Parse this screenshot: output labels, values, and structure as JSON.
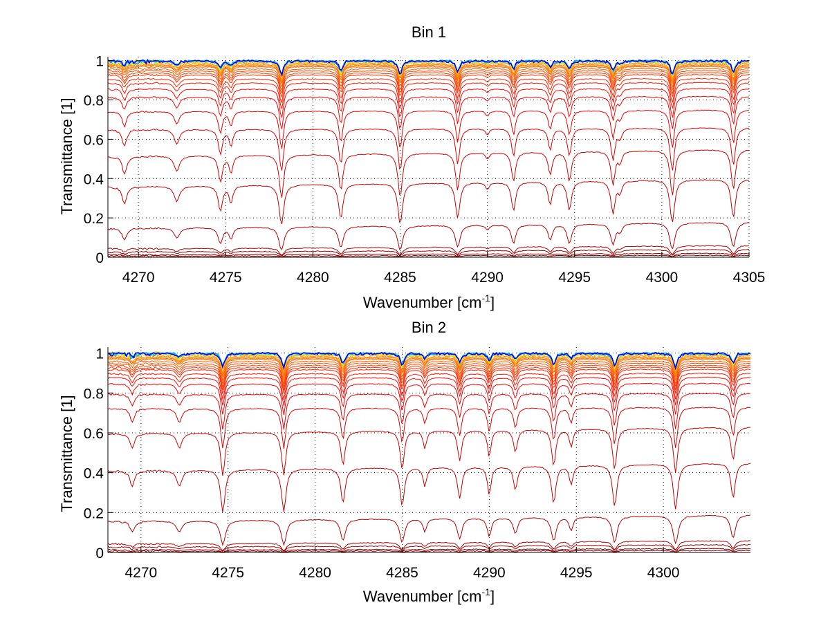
{
  "chart_data": [
    {
      "type": "line",
      "title": "Bin 1",
      "xlabel": "Wavenumber [cm",
      "xlabel_sup": "-1",
      "xlabel_end": "]",
      "ylabel": "Transmittance [1]",
      "xlim": [
        4268.25,
        4305
      ],
      "ylim": [
        0,
        1.02
      ],
      "xticks": [
        4270,
        4275,
        4280,
        4285,
        4290,
        4295,
        4300,
        4305
      ],
      "xtick_labels": [
        "4270",
        "4275",
        "4280",
        "4285",
        "4290",
        "4295",
        "4300",
        "4305"
      ],
      "yticks": [
        0,
        0.2,
        0.4,
        0.6,
        0.8,
        1
      ],
      "ytick_labels": [
        "0",
        "0.2",
        "0.4",
        "0.6",
        "0.8",
        "1"
      ],
      "grid": "dotted",
      "colormap": "jet",
      "absorption_lines": [
        {
          "center": 4269.2,
          "strength": 0.35,
          "width": 0.25
        },
        {
          "center": 4272.2,
          "strength": 0.3,
          "width": 0.3
        },
        {
          "center": 4274.7,
          "strength": 0.55,
          "width": 0.22
        },
        {
          "center": 4275.3,
          "strength": 0.35,
          "width": 0.2
        },
        {
          "center": 4278.2,
          "strength": 1.0,
          "width": 0.22
        },
        {
          "center": 4281.6,
          "strength": 0.8,
          "width": 0.22
        },
        {
          "center": 4285.0,
          "strength": 1.0,
          "width": 0.22
        },
        {
          "center": 4288.3,
          "strength": 0.8,
          "width": 0.22
        },
        {
          "center": 4290.0,
          "strength": 0.12,
          "width": 0.2
        },
        {
          "center": 4291.5,
          "strength": 0.6,
          "width": 0.22
        },
        {
          "center": 4293.6,
          "strength": 0.45,
          "width": 0.22
        },
        {
          "center": 4294.7,
          "strength": 0.6,
          "width": 0.22
        },
        {
          "center": 4297.2,
          "strength": 0.7,
          "width": 0.22
        },
        {
          "center": 4297.6,
          "strength": 0.2,
          "width": 0.2
        },
        {
          "center": 4300.6,
          "strength": 1.0,
          "width": 0.22
        },
        {
          "center": 4304.1,
          "strength": 0.85,
          "width": 0.22
        }
      ],
      "curve_baselines_at_left": [
        1.0,
        1.0,
        1.0,
        0.995,
        0.99,
        0.985,
        0.98,
        0.975,
        0.97,
        0.96,
        0.95,
        0.94,
        0.93,
        0.91,
        0.89,
        0.86,
        0.82,
        0.75,
        0.66,
        0.55,
        0.4,
        0.18,
        0.06,
        0.04,
        0.02,
        0.01
      ]
    },
    {
      "type": "line",
      "title": "Bin 2",
      "xlabel": "Wavenumber [cm",
      "xlabel_sup": "-1",
      "xlabel_end": "]",
      "ylabel": "Transmittance [1]",
      "xlim": [
        4268.1,
        4305
      ],
      "ylim": [
        0,
        1.03
      ],
      "xticks": [
        4270,
        4275,
        4280,
        4285,
        4290,
        4295,
        4300
      ],
      "xtick_labels": [
        "4270",
        "4275",
        "4280",
        "4285",
        "4290",
        "4295",
        "4300"
      ],
      "yticks": [
        0,
        0.2,
        0.4,
        0.6,
        0.8,
        1
      ],
      "ytick_labels": [
        "0",
        "0.2",
        "0.4",
        "0.6",
        "0.8",
        "1"
      ],
      "grid": "dotted",
      "colormap": "jet",
      "absorption_lines": [
        {
          "center": 4269.5,
          "strength": 0.3,
          "width": 0.25
        },
        {
          "center": 4272.2,
          "strength": 0.3,
          "width": 0.3
        },
        {
          "center": 4274.7,
          "strength": 1.0,
          "width": 0.22
        },
        {
          "center": 4278.2,
          "strength": 1.0,
          "width": 0.22
        },
        {
          "center": 4281.6,
          "strength": 0.75,
          "width": 0.22
        },
        {
          "center": 4285.0,
          "strength": 0.85,
          "width": 0.22
        },
        {
          "center": 4286.3,
          "strength": 0.35,
          "width": 0.2
        },
        {
          "center": 4288.3,
          "strength": 0.65,
          "width": 0.22
        },
        {
          "center": 4290.0,
          "strength": 0.55,
          "width": 0.2
        },
        {
          "center": 4291.5,
          "strength": 0.45,
          "width": 0.22
        },
        {
          "center": 4293.7,
          "strength": 0.8,
          "width": 0.22
        },
        {
          "center": 4294.7,
          "strength": 0.35,
          "width": 0.2
        },
        {
          "center": 4297.2,
          "strength": 0.9,
          "width": 0.22
        },
        {
          "center": 4300.7,
          "strength": 1.0,
          "width": 0.22
        },
        {
          "center": 4304.0,
          "strength": 0.7,
          "width": 0.22
        }
      ],
      "curve_baselines_at_left": [
        1.0,
        1.0,
        1.0,
        0.995,
        0.99,
        0.985,
        0.98,
        0.975,
        0.97,
        0.96,
        0.95,
        0.94,
        0.93,
        0.92,
        0.9,
        0.88,
        0.85,
        0.8,
        0.73,
        0.63,
        0.45,
        0.19,
        0.06,
        0.04,
        0.02,
        0.01
      ]
    }
  ]
}
